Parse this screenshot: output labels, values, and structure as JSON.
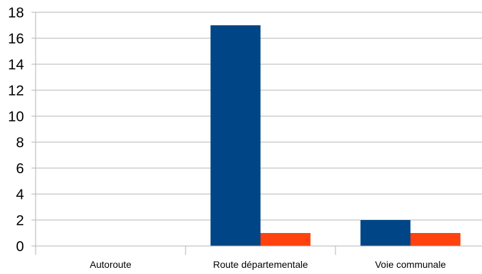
{
  "chart_data": {
    "type": "bar",
    "categories": [
      "Autoroute",
      "Route départementale",
      "Voie communale"
    ],
    "series": [
      {
        "values": [
          0,
          17,
          2
        ],
        "color": "#004586"
      },
      {
        "values": [
          0,
          1,
          1
        ],
        "color": "#ff420e"
      }
    ],
    "ylim": [
      0,
      18
    ],
    "yticks": [
      "0",
      "2",
      "4",
      "6",
      "8",
      "10",
      "12",
      "14",
      "16",
      "18"
    ],
    "grid": true,
    "legend": "none"
  }
}
